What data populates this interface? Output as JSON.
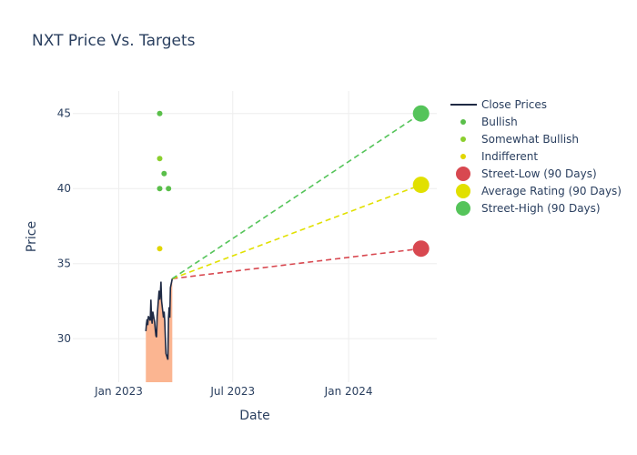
{
  "chart_data": {
    "type": "line",
    "title": "NXT Price Vs. Targets",
    "xlabel": "Date",
    "ylabel": "Price",
    "xlim": [
      "2022-10-20",
      "2024-05-20"
    ],
    "ylim": [
      27.1,
      46.5
    ],
    "x_ticks": [
      {
        "date": "2023-01-01",
        "label": "Jan 2023"
      },
      {
        "date": "2023-07-01",
        "label": "Jul 2023"
      },
      {
        "date": "2024-01-01",
        "label": "Jan 2024"
      }
    ],
    "y_ticks": [
      30,
      35,
      40,
      45
    ],
    "fill_baseline": 27.1,
    "series": [
      {
        "name": "Close Prices",
        "kind": "line",
        "color": "#1f2a44",
        "fill": "#fbb591",
        "points": [
          [
            "2023-02-13",
            30.5
          ],
          [
            "2023-02-14",
            31.0
          ],
          [
            "2023-02-15",
            31.3
          ],
          [
            "2023-02-16",
            30.9
          ],
          [
            "2023-02-17",
            31.5
          ],
          [
            "2023-02-20",
            31.2
          ],
          [
            "2023-02-21",
            32.6
          ],
          [
            "2023-02-22",
            31.4
          ],
          [
            "2023-02-23",
            31.0
          ],
          [
            "2023-02-24",
            31.8
          ],
          [
            "2023-02-27",
            31.1
          ],
          [
            "2023-02-28",
            30.6
          ],
          [
            "2023-03-01",
            30.2
          ],
          [
            "2023-03-02",
            30.1
          ],
          [
            "2023-03-03",
            31.5
          ],
          [
            "2023-03-06",
            33.2
          ],
          [
            "2023-03-07",
            32.6
          ],
          [
            "2023-03-08",
            33.0
          ],
          [
            "2023-03-09",
            33.8
          ],
          [
            "2023-03-10",
            32.5
          ],
          [
            "2023-03-13",
            31.4
          ],
          [
            "2023-03-14",
            31.8
          ],
          [
            "2023-03-15",
            31.2
          ],
          [
            "2023-03-16",
            30.0
          ],
          [
            "2023-03-17",
            29.0
          ],
          [
            "2023-03-20",
            28.6
          ],
          [
            "2023-03-21",
            31.4
          ],
          [
            "2023-03-22",
            32.1
          ],
          [
            "2023-03-23",
            31.4
          ],
          [
            "2023-03-24",
            33.4
          ],
          [
            "2023-03-27",
            34.0
          ]
        ]
      },
      {
        "name": "Bullish",
        "kind": "markers",
        "color": "#5abf4a",
        "points": [
          [
            "2023-03-07",
            45
          ],
          [
            "2023-03-07",
            40
          ],
          [
            "2023-03-14",
            41
          ],
          [
            "2023-03-21",
            40
          ]
        ]
      },
      {
        "name": "Somewhat Bullish",
        "kind": "markers",
        "color": "#8bcf2e",
        "points": [
          [
            "2023-03-07",
            42
          ]
        ]
      },
      {
        "name": "Indifferent",
        "kind": "markers",
        "color": "#e1d600",
        "points": [
          [
            "2023-03-07",
            36
          ]
        ]
      },
      {
        "name": "Street-Low (90 Days)",
        "kind": "target",
        "color": "#d84850",
        "points": [
          [
            "2023-03-27",
            34.0
          ],
          [
            "2024-04-25",
            36.0
          ]
        ]
      },
      {
        "name": "Average Rating (90 Days)",
        "kind": "target",
        "color": "#e1e000",
        "points": [
          [
            "2023-03-27",
            34.0
          ],
          [
            "2024-04-25",
            40.25
          ]
        ]
      },
      {
        "name": "Street-High (90 Days)",
        "kind": "target",
        "color": "#55c45a",
        "points": [
          [
            "2023-03-27",
            34.0
          ],
          [
            "2024-04-25",
            45.0
          ]
        ]
      }
    ],
    "legend_position": "top-right"
  }
}
